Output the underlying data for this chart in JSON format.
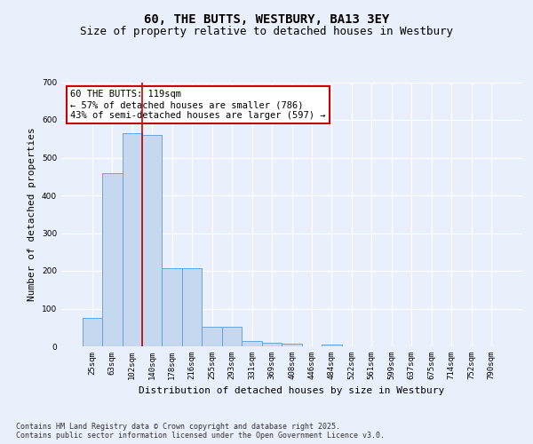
{
  "title": "60, THE BUTTS, WESTBURY, BA13 3EY",
  "subtitle": "Size of property relative to detached houses in Westbury",
  "xlabel": "Distribution of detached houses by size in Westbury",
  "ylabel": "Number of detached properties",
  "bar_labels": [
    "25sqm",
    "63sqm",
    "102sqm",
    "140sqm",
    "178sqm",
    "216sqm",
    "255sqm",
    "293sqm",
    "331sqm",
    "369sqm",
    "408sqm",
    "446sqm",
    "484sqm",
    "522sqm",
    "561sqm",
    "599sqm",
    "637sqm",
    "675sqm",
    "714sqm",
    "752sqm",
    "790sqm"
  ],
  "bar_values": [
    75,
    460,
    565,
    560,
    207,
    207,
    52,
    52,
    15,
    10,
    8,
    0,
    5,
    0,
    0,
    0,
    0,
    0,
    0,
    0,
    0
  ],
  "bar_color": "#c5d8f0",
  "bar_edge_color": "#5b9bd5",
  "background_color": "#eaf0fb",
  "plot_bg_color": "#eaf0fb",
  "red_line_x": 2.5,
  "annotation_text": "60 THE BUTTS: 119sqm\n← 57% of detached houses are smaller (786)\n43% of semi-detached houses are larger (597) →",
  "annotation_box_color": "#ffffff",
  "annotation_box_edge": "#cc0000",
  "ylim": [
    0,
    700
  ],
  "yticks": [
    0,
    100,
    200,
    300,
    400,
    500,
    600,
    700
  ],
  "footer": "Contains HM Land Registry data © Crown copyright and database right 2025.\nContains public sector information licensed under the Open Government Licence v3.0.",
  "title_fontsize": 10,
  "subtitle_fontsize": 9,
  "xlabel_fontsize": 8,
  "ylabel_fontsize": 8,
  "tick_fontsize": 6.5,
  "annotation_fontsize": 7.5,
  "footer_fontsize": 6
}
